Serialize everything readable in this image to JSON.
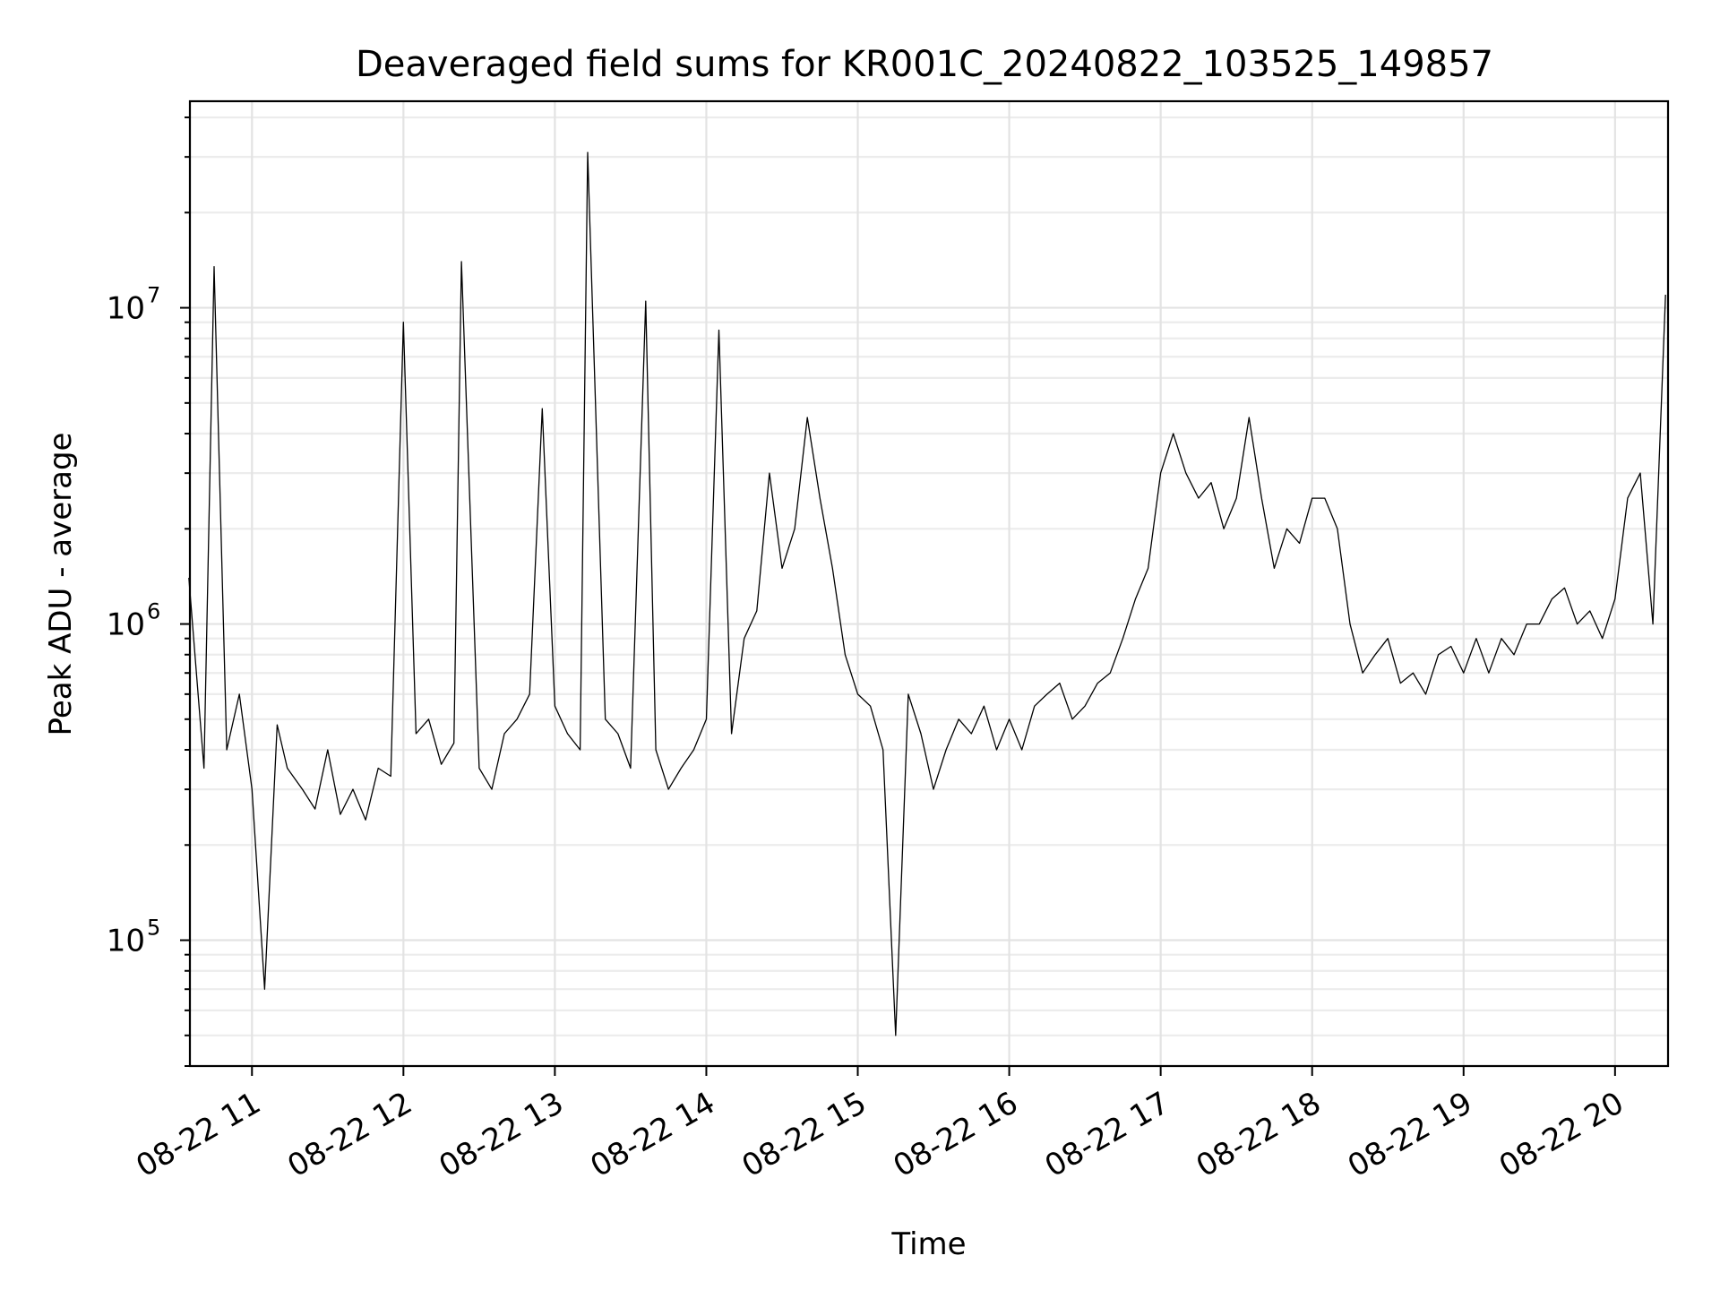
{
  "chart_data": {
    "type": "line",
    "title": "Deaveraged field sums for KR001C_20240822_103525_149857",
    "xlabel": "Time",
    "ylabel": "Peak ADU - average",
    "y_scale": "log",
    "ylim": [
      40000,
      45000000
    ],
    "xlim": [
      "2024-08-22 10:35:25",
      "2024-08-22 20:21:00"
    ],
    "grid": true,
    "x_ticks": [
      {
        "t": "2024-08-22 11:00",
        "label": "08-22 11"
      },
      {
        "t": "2024-08-22 12:00",
        "label": "08-22 12"
      },
      {
        "t": "2024-08-22 13:00",
        "label": "08-22 13"
      },
      {
        "t": "2024-08-22 14:00",
        "label": "08-22 14"
      },
      {
        "t": "2024-08-22 15:00",
        "label": "08-22 15"
      },
      {
        "t": "2024-08-22 16:00",
        "label": "08-22 16"
      },
      {
        "t": "2024-08-22 17:00",
        "label": "08-22 17"
      },
      {
        "t": "2024-08-22 18:00",
        "label": "08-22 18"
      },
      {
        "t": "2024-08-22 19:00",
        "label": "08-22 19"
      },
      {
        "t": "2024-08-22 20:00",
        "label": "08-22 20"
      }
    ],
    "y_ticks": [
      {
        "value": 100000,
        "base": "10",
        "exp": "5"
      },
      {
        "value": 1000000,
        "base": "10",
        "exp": "6"
      },
      {
        "value": 10000000,
        "base": "10",
        "exp": "7"
      }
    ],
    "series": [
      {
        "color": "#000000",
        "x": [
          "2024-08-22 10:35",
          "2024-08-22 10:41",
          "2024-08-22 10:45",
          "2024-08-22 10:50",
          "2024-08-22 10:55",
          "2024-08-22 11:00",
          "2024-08-22 11:05",
          "2024-08-22 11:10",
          "2024-08-22 11:14",
          "2024-08-22 11:20",
          "2024-08-22 11:25",
          "2024-08-22 11:30",
          "2024-08-22 11:35",
          "2024-08-22 11:40",
          "2024-08-22 11:45",
          "2024-08-22 11:50",
          "2024-08-22 11:55",
          "2024-08-22 12:00",
          "2024-08-22 12:05",
          "2024-08-22 12:10",
          "2024-08-22 12:15",
          "2024-08-22 12:20",
          "2024-08-22 12:23",
          "2024-08-22 12:30",
          "2024-08-22 12:35",
          "2024-08-22 12:40",
          "2024-08-22 12:45",
          "2024-08-22 12:50",
          "2024-08-22 12:55",
          "2024-08-22 13:00",
          "2024-08-22 13:05",
          "2024-08-22 13:10",
          "2024-08-22 13:13",
          "2024-08-22 13:20",
          "2024-08-22 13:25",
          "2024-08-22 13:30",
          "2024-08-22 13:36",
          "2024-08-22 13:40",
          "2024-08-22 13:45",
          "2024-08-22 13:50",
          "2024-08-22 13:55",
          "2024-08-22 14:00",
          "2024-08-22 14:05",
          "2024-08-22 14:10",
          "2024-08-22 14:15",
          "2024-08-22 14:20",
          "2024-08-22 14:25",
          "2024-08-22 14:30",
          "2024-08-22 14:35",
          "2024-08-22 14:40",
          "2024-08-22 14:45",
          "2024-08-22 14:50",
          "2024-08-22 14:55",
          "2024-08-22 15:00",
          "2024-08-22 15:05",
          "2024-08-22 15:10",
          "2024-08-22 15:15",
          "2024-08-22 15:20",
          "2024-08-22 15:25",
          "2024-08-22 15:30",
          "2024-08-22 15:35",
          "2024-08-22 15:40",
          "2024-08-22 15:45",
          "2024-08-22 15:50",
          "2024-08-22 15:55",
          "2024-08-22 16:00",
          "2024-08-22 16:05",
          "2024-08-22 16:10",
          "2024-08-22 16:15",
          "2024-08-22 16:20",
          "2024-08-22 16:25",
          "2024-08-22 16:30",
          "2024-08-22 16:35",
          "2024-08-22 16:40",
          "2024-08-22 16:45",
          "2024-08-22 16:50",
          "2024-08-22 16:55",
          "2024-08-22 17:00",
          "2024-08-22 17:05",
          "2024-08-22 17:10",
          "2024-08-22 17:15",
          "2024-08-22 17:20",
          "2024-08-22 17:25",
          "2024-08-22 17:30",
          "2024-08-22 17:35",
          "2024-08-22 17:40",
          "2024-08-22 17:45",
          "2024-08-22 17:50",
          "2024-08-22 17:55",
          "2024-08-22 18:00",
          "2024-08-22 18:05",
          "2024-08-22 18:10",
          "2024-08-22 18:15",
          "2024-08-22 18:20",
          "2024-08-22 18:25",
          "2024-08-22 18:30",
          "2024-08-22 18:35",
          "2024-08-22 18:40",
          "2024-08-22 18:45",
          "2024-08-22 18:50",
          "2024-08-22 18:55",
          "2024-08-22 19:00",
          "2024-08-22 19:05",
          "2024-08-22 19:10",
          "2024-08-22 19:15",
          "2024-08-22 19:20",
          "2024-08-22 19:25",
          "2024-08-22 19:30",
          "2024-08-22 19:35",
          "2024-08-22 19:40",
          "2024-08-22 19:45",
          "2024-08-22 19:50",
          "2024-08-22 19:55",
          "2024-08-22 20:00",
          "2024-08-22 20:05",
          "2024-08-22 20:10",
          "2024-08-22 20:15",
          "2024-08-22 20:20"
        ],
        "y": [
          1400000,
          350000,
          13500000,
          400000,
          600000,
          300000,
          70000,
          480000,
          350000,
          300000,
          260000,
          400000,
          250000,
          300000,
          240000,
          350000,
          330000,
          9000000,
          450000,
          500000,
          360000,
          420000,
          14000000,
          350000,
          300000,
          450000,
          500000,
          600000,
          4800000,
          550000,
          450000,
          400000,
          31000000,
          500000,
          450000,
          350000,
          10500000,
          400000,
          300000,
          350000,
          400000,
          500000,
          8500000,
          450000,
          900000,
          1100000,
          3000000,
          1500000,
          2000000,
          4500000,
          2500000,
          1500000,
          800000,
          600000,
          550000,
          400000,
          50000,
          600000,
          450000,
          300000,
          400000,
          500000,
          450000,
          550000,
          400000,
          500000,
          400000,
          550000,
          600000,
          650000,
          500000,
          550000,
          650000,
          700000,
          900000,
          1200000,
          1500000,
          3000000,
          4000000,
          3000000,
          2500000,
          2800000,
          2000000,
          2500000,
          4500000,
          2500000,
          1500000,
          2000000,
          1800000,
          2500000,
          2500000,
          2000000,
          1000000,
          700000,
          800000,
          900000,
          650000,
          700000,
          600000,
          800000,
          850000,
          700000,
          900000,
          700000,
          900000,
          800000,
          1000000,
          1000000,
          1200000,
          1300000,
          1000000,
          1100000,
          900000,
          1200000,
          2500000,
          3000000,
          1000000,
          11000000
        ]
      }
    ]
  }
}
